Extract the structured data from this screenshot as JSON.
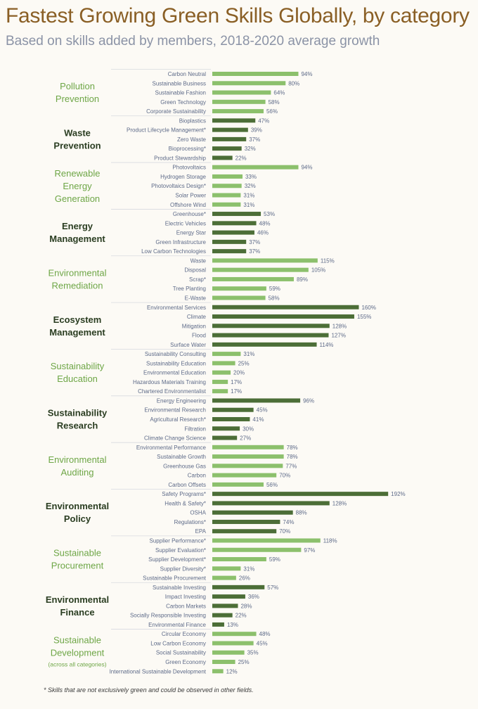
{
  "title": "Fastest Growing Green Skills Globally, by category",
  "subtitle": "Based on skills added by members, 2018-2020 average growth",
  "footnote": "* Skills that are not exclusively green and could be observed in other fields.",
  "colors": {
    "title": "#8a5f25",
    "subtitle": "#8b93a6",
    "light_bar": "#8cc06c",
    "dark_bar": "#4c6e37",
    "light_category": "#6ea646",
    "dark_category": "#2a3d21",
    "skill_label": "#5d6a88",
    "value_label": "#5d6a88",
    "divider": "#d7d9df"
  },
  "chart_data": {
    "type": "bar",
    "orientation": "horizontal",
    "value_format": "percent",
    "groups": [
      {
        "name": "Pollution Prevention",
        "shade": "light",
        "skills": [
          "Carbon Neutral",
          "Sustainable Business",
          "Sustainable Fashion",
          "Green Technology",
          "Corporate Sustainability"
        ],
        "values": [
          94,
          80,
          64,
          58,
          56
        ]
      },
      {
        "name": "Waste Prevention",
        "shade": "dark",
        "skills": [
          "Bioplastics",
          "Product Lifecycle Management*",
          "Zero Waste",
          "Bioprocessing*",
          "Product Stewardship"
        ],
        "values": [
          47,
          39,
          37,
          32,
          22
        ]
      },
      {
        "name": "Renewable Energy Generation",
        "shade": "light",
        "skills": [
          "Photovoltaics",
          "Hydrogen Storage",
          "Photovoltaics Design*",
          "Solar Power",
          "Offshore Wind"
        ],
        "values": [
          94,
          33,
          32,
          31,
          31
        ]
      },
      {
        "name": "Energy Management",
        "shade": "dark",
        "skills": [
          "Greenhouse*",
          "Electric Vehicles",
          "Energy Star",
          "Green Infrastructure",
          "Low Carbon Technologies"
        ],
        "values": [
          53,
          48,
          46,
          37,
          37
        ]
      },
      {
        "name": "Environmental Remediation",
        "shade": "light",
        "skills": [
          "Waste",
          "Disposal",
          "Scrap*",
          "Tree Planting",
          "E-Waste"
        ],
        "values": [
          115,
          105,
          89,
          59,
          58
        ]
      },
      {
        "name": "Ecosystem Management",
        "shade": "dark",
        "skills": [
          "Environmental Services",
          "Climate",
          "Mitigation",
          "Flood",
          "Surface Water"
        ],
        "values": [
          160,
          155,
          128,
          127,
          114
        ]
      },
      {
        "name": "Sustainability Education",
        "shade": "light",
        "skills": [
          "Sustainability Consulting",
          "Sustainability Education",
          "Environmental Education",
          "Hazardous Materials Training",
          "Chartered Environmentalist"
        ],
        "values": [
          31,
          25,
          20,
          17,
          17
        ]
      },
      {
        "name": "Sustainability Research",
        "shade": "dark",
        "skills": [
          "Energy Engineering",
          "Environmental Research",
          "Agricultural Research*",
          "Filtration",
          "Climate Change Science"
        ],
        "values": [
          96,
          45,
          41,
          30,
          27
        ]
      },
      {
        "name": "Environmental Auditing",
        "shade": "light",
        "skills": [
          "Environmental Performance",
          "Sustainable Growth",
          "Greenhouse Gas",
          "Carbon",
          "Carbon Offsets"
        ],
        "values": [
          78,
          78,
          77,
          70,
          56
        ]
      },
      {
        "name": "Environmental Policy",
        "shade": "dark",
        "skills": [
          "Safety Programs*",
          "Health & Safety*",
          "OSHA",
          "Regulations*",
          "EPA"
        ],
        "values": [
          192,
          128,
          88,
          74,
          70
        ]
      },
      {
        "name": "Sustainable Procurement",
        "shade": "light",
        "skills": [
          "Supplier Performance*",
          "Supplier Evaluation*",
          "Supplier Development*",
          "Supplier Diversity*",
          "Sustainable Procurement"
        ],
        "values": [
          118,
          97,
          59,
          31,
          26
        ]
      },
      {
        "name": "Environmental Finance",
        "shade": "dark",
        "skills": [
          "Sustainable Investing",
          "Impact Investing",
          "Carbon Markets",
          "Socially Responsible Investing",
          "Environmental Finance"
        ],
        "values": [
          57,
          36,
          28,
          22,
          13
        ]
      },
      {
        "name": "Sustainable Development",
        "note": "(across all categories)",
        "shade": "light",
        "skills": [
          "Circular Economy",
          "Low Carbon Economy",
          "Social Sustainability",
          "Green Economy",
          "International Sustainable Development"
        ],
        "values": [
          48,
          45,
          35,
          25,
          12
        ]
      }
    ]
  }
}
